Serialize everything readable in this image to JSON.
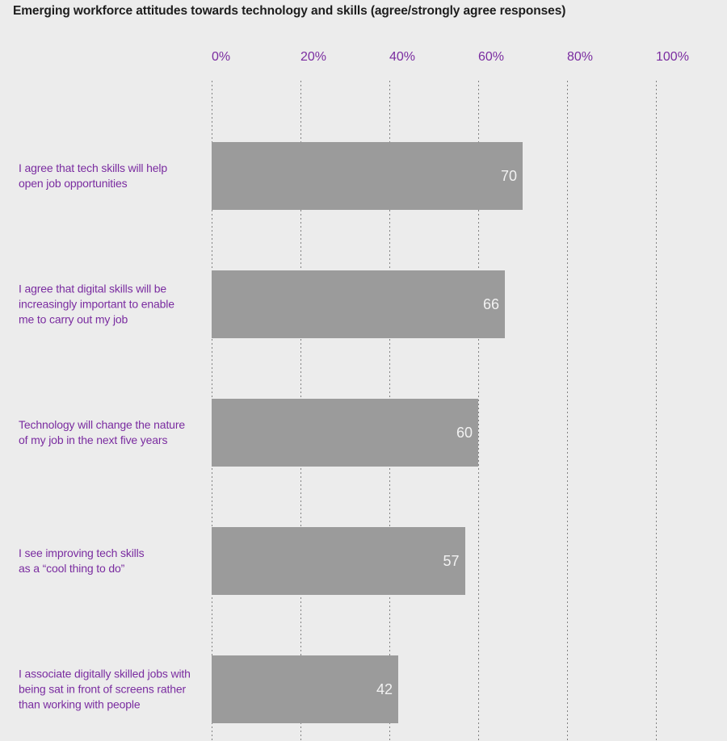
{
  "chart_data": {
    "type": "bar",
    "orientation": "horizontal",
    "title": "Emerging workforce attitudes towards technology and skills (agree/strongly agree responses)",
    "categories": [
      "I agree that tech skills will help\nopen job opportunities",
      "I agree that digital skills will be\nincreasingly important to enable\nme to carry out my job",
      "Technology will change the nature\nof my job in the next five years",
      "I see improving tech skills\nas a “cool thing to do”",
      "I associate digitally skilled jobs with\nbeing sat in front of screens rather\nthan working with people"
    ],
    "values": [
      70,
      66,
      60,
      57,
      42
    ],
    "value_labels": [
      "70",
      "66",
      "60",
      "57",
      "42"
    ],
    "xlabel": "",
    "ylabel": "",
    "xlim": [
      0,
      100
    ],
    "xticks": [
      0,
      20,
      40,
      60,
      80,
      100
    ],
    "xtick_labels": [
      "0%",
      "20%",
      "40%",
      "60%",
      "80%",
      "100%"
    ],
    "grid": "vertical-dotted",
    "legend": "none",
    "colors": {
      "background": "#ECECEC",
      "bar": "#9B9B9B",
      "value_label": "#F2F2F2",
      "category_label": "#7A2CA0",
      "tick_label": "#7A2CA0",
      "title": "#1D1D1D",
      "gridline": "#828282"
    }
  }
}
